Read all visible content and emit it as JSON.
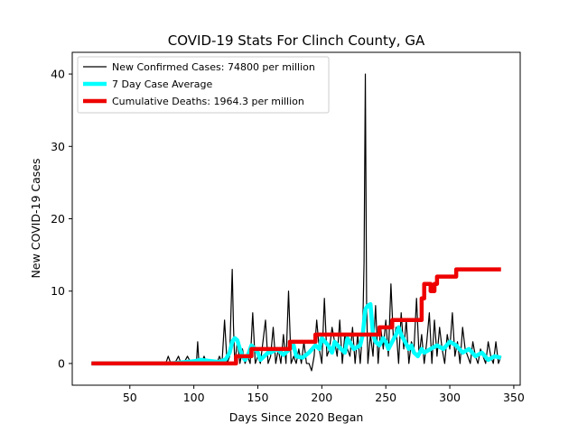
{
  "chart_data": {
    "type": "line",
    "title": "COVID-19 Stats For Clinch County, GA",
    "xlabel": "Days Since 2020 Began",
    "ylabel": "New COVID-19 Cases",
    "xlim": [
      5,
      355
    ],
    "ylim": [
      -3,
      43
    ],
    "xticks": [
      50,
      100,
      150,
      200,
      250,
      300,
      350
    ],
    "yticks": [
      0,
      10,
      20,
      30,
      40
    ],
    "grid": false,
    "legend_position": "top-left",
    "series": [
      {
        "name": "New Confirmed Cases: 74800 per million",
        "color": "#000000",
        "x": [
          20,
          30,
          40,
          50,
          60,
          70,
          78,
          80,
          82,
          85,
          88,
          90,
          92,
          95,
          98,
          100,
          102,
          103,
          104,
          106,
          108,
          110,
          112,
          114,
          116,
          118,
          120,
          122,
          124,
          126,
          128,
          130,
          131,
          132,
          134,
          136,
          138,
          140,
          142,
          144,
          146,
          148,
          150,
          152,
          154,
          156,
          158,
          160,
          162,
          164,
          166,
          168,
          170,
          172,
          174,
          176,
          178,
          180,
          182,
          184,
          186,
          188,
          190,
          192,
          194,
          196,
          198,
          200,
          202,
          204,
          206,
          208,
          210,
          212,
          214,
          216,
          218,
          220,
          222,
          224,
          226,
          228,
          230,
          232,
          233,
          234,
          235,
          236,
          238,
          240,
          242,
          244,
          246,
          248,
          250,
          252,
          254,
          256,
          258,
          260,
          262,
          264,
          266,
          268,
          270,
          272,
          274,
          276,
          278,
          280,
          282,
          284,
          286,
          288,
          290,
          292,
          294,
          296,
          298,
          300,
          302,
          304,
          306,
          308,
          310,
          312,
          314,
          316,
          318,
          320,
          322,
          324,
          326,
          328,
          330,
          332,
          334,
          336,
          338,
          340
        ],
        "y": [
          0,
          0,
          0,
          0,
          0,
          0,
          0,
          1,
          0,
          0,
          1,
          0,
          0,
          1,
          0,
          0,
          0,
          3,
          0,
          0,
          1,
          0,
          0,
          0,
          0,
          0,
          1,
          0,
          6,
          0,
          1,
          13,
          5,
          0,
          3,
          0,
          2,
          0,
          1,
          0,
          7,
          0,
          1,
          0,
          3,
          6,
          0,
          1,
          5,
          0,
          2,
          0,
          4,
          0,
          10,
          0,
          1,
          0,
          2,
          0,
          3,
          0,
          0,
          -1,
          1,
          6,
          2,
          0,
          9,
          1,
          2,
          5,
          3,
          1,
          6,
          0,
          4,
          2,
          1,
          5,
          0,
          4,
          0,
          5,
          14,
          40,
          8,
          0,
          4,
          1,
          8,
          0,
          5,
          2,
          6,
          1,
          11,
          3,
          5,
          0,
          7,
          2,
          6,
          0,
          3,
          2,
          9,
          1,
          4,
          0,
          3,
          7,
          0,
          6,
          1,
          5,
          2,
          0,
          4,
          2,
          7,
          1,
          3,
          0,
          5,
          2,
          1,
          0,
          3,
          1,
          0,
          2,
          1,
          0,
          3,
          1,
          0,
          3,
          0,
          1
        ]
      },
      {
        "name": "7 Day Case Average",
        "color": "#00ffff",
        "x": [
          20,
          60,
          80,
          100,
          105,
          110,
          120,
          125,
          128,
          130,
          132,
          134,
          136,
          138,
          140,
          142,
          145,
          148,
          150,
          152,
          155,
          158,
          160,
          165,
          170,
          175,
          178,
          180,
          185,
          190,
          195,
          198,
          200,
          205,
          208,
          210,
          215,
          218,
          220,
          225,
          230,
          232,
          234,
          236,
          238,
          240,
          242,
          245,
          248,
          250,
          252,
          255,
          258,
          260,
          262,
          265,
          268,
          270,
          272,
          275,
          278,
          280,
          285,
          290,
          295,
          300,
          305,
          310,
          315,
          320,
          325,
          330,
          335,
          340
        ],
        "y": [
          0,
          0,
          0,
          0.3,
          0.5,
          0.4,
          0.2,
          0.6,
          1.5,
          3,
          3.5,
          3.2,
          2,
          1,
          0.5,
          1,
          2.5,
          2,
          1.5,
          0.5,
          1,
          1.5,
          1.5,
          2,
          1.2,
          2,
          2.5,
          1,
          0.8,
          1.5,
          2.5,
          2,
          3.5,
          2.5,
          1.5,
          3,
          2,
          1.5,
          3.5,
          2,
          2.5,
          4,
          7.5,
          8,
          8.2,
          4,
          3,
          2.5,
          3.5,
          3,
          2,
          3,
          4,
          5,
          4,
          3,
          2,
          2.5,
          1.5,
          1,
          2,
          1.5,
          2,
          2.5,
          2,
          3,
          2.5,
          1.5,
          2,
          1,
          1.5,
          0.5,
          1,
          0.8
        ]
      },
      {
        "name": "Cumulative Deaths: 1964.3 per million",
        "color": "#ee0000",
        "x": [
          20,
          133,
          133,
          145,
          145,
          175,
          175,
          195,
          195,
          245,
          245,
          255,
          255,
          265,
          265,
          278,
          278,
          280,
          280,
          285,
          285,
          288,
          288,
          290,
          290,
          305,
          305,
          340
        ],
        "y": [
          0,
          0,
          1,
          1,
          2,
          2,
          3,
          3,
          4,
          4,
          5,
          5,
          6,
          6,
          6,
          6,
          9,
          9,
          11,
          11,
          10,
          10,
          11,
          11,
          12,
          12,
          13,
          13
        ]
      }
    ]
  }
}
